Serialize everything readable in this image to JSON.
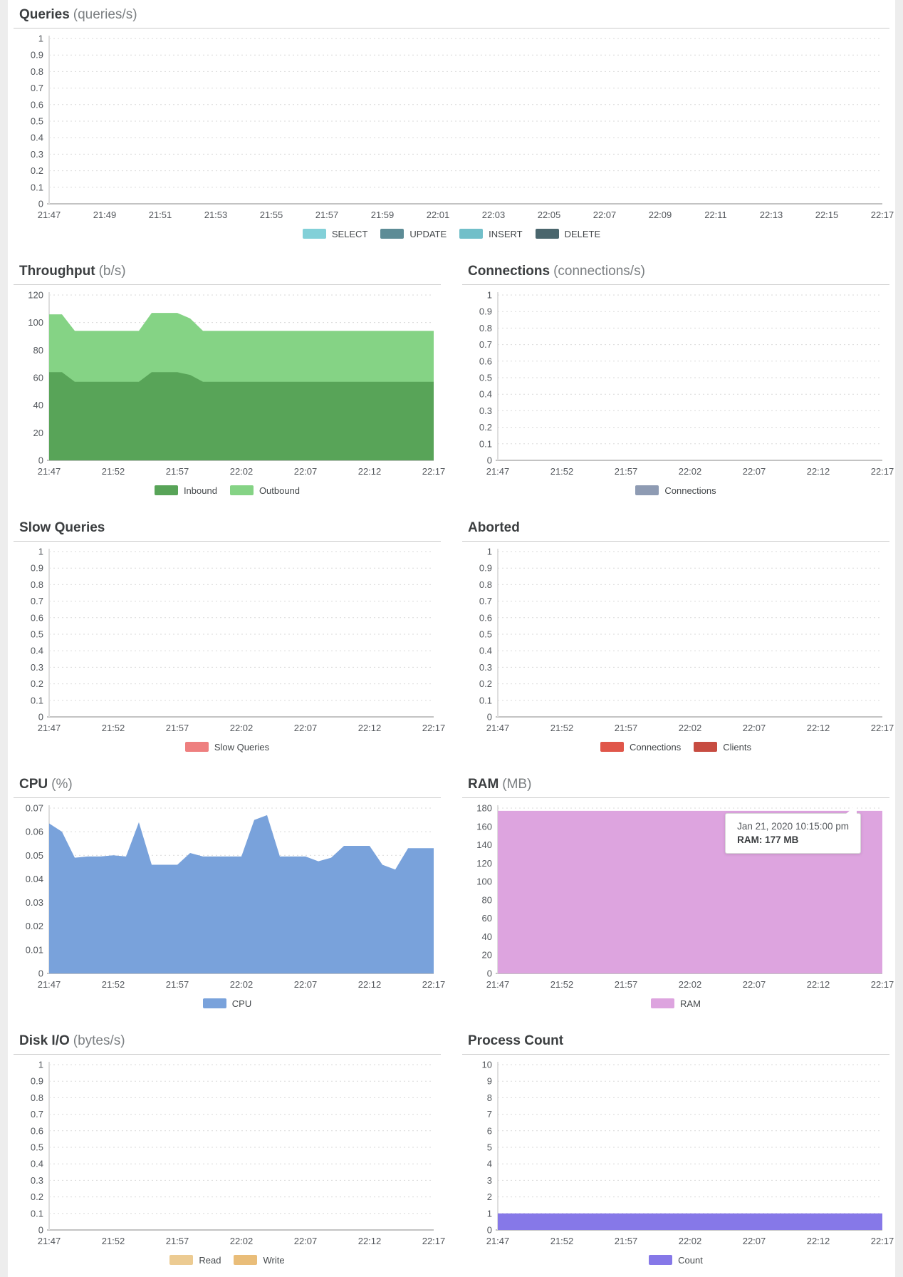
{
  "chart_data": [
    {
      "id": "queries",
      "type": "area",
      "title": "Queries",
      "subtitle": "(queries/s)",
      "ylim": [
        0,
        1
      ],
      "grid": true,
      "legend_position": "bottom",
      "yticks": [
        "1",
        "0.9",
        "0.8",
        "0.7",
        "0.6",
        "0.5",
        "0.4",
        "0.3",
        "0.2",
        "0.1",
        "0"
      ],
      "x_labels": [
        "21:47",
        "21:49",
        "21:51",
        "21:53",
        "21:55",
        "21:57",
        "21:59",
        "22:01",
        "22:03",
        "22:05",
        "22:07",
        "22:09",
        "22:11",
        "22:13",
        "22:15",
        "22:17"
      ],
      "series": [],
      "legend": [
        {
          "label": "SELECT",
          "color": "#82d0d8"
        },
        {
          "label": "UPDATE",
          "color": "#5d8c96"
        },
        {
          "label": "INSERT",
          "color": "#71bfc9"
        },
        {
          "label": "DELETE",
          "color": "#4a666d"
        }
      ]
    },
    {
      "id": "throughput",
      "type": "area",
      "title": "Throughput",
      "subtitle": "(b/s)",
      "ylim": [
        0,
        120
      ],
      "grid": true,
      "legend_position": "bottom",
      "yticks": [
        "120",
        "100",
        "80",
        "60",
        "40",
        "20",
        "0"
      ],
      "x_labels": [
        "21:47",
        "21:52",
        "21:57",
        "22:02",
        "22:07",
        "22:12",
        "22:17"
      ],
      "series": [
        {
          "name": "Outbound",
          "color": "#85d385",
          "values": [
            106,
            106,
            94,
            94,
            94,
            94,
            94,
            94,
            107,
            107,
            107,
            103,
            94,
            94,
            94,
            94,
            94,
            94,
            94,
            94,
            94,
            94,
            94,
            94,
            94,
            94,
            94,
            94,
            94,
            94,
            94
          ]
        },
        {
          "name": "Inbound",
          "color": "#58a458",
          "values": [
            64,
            64,
            57,
            57,
            57,
            57,
            57,
            57,
            64,
            64,
            64,
            62,
            57,
            57,
            57,
            57,
            57,
            57,
            57,
            57,
            57,
            57,
            57,
            57,
            57,
            57,
            57,
            57,
            57,
            57,
            57
          ]
        }
      ],
      "legend": [
        {
          "label": "Inbound",
          "color": "#58a458"
        },
        {
          "label": "Outbound",
          "color": "#85d385"
        }
      ]
    },
    {
      "id": "connections",
      "type": "area",
      "title": "Connections",
      "subtitle": "(connections/s)",
      "ylim": [
        0,
        1
      ],
      "grid": true,
      "legend_position": "bottom",
      "yticks": [
        "1",
        "0.9",
        "0.8",
        "0.7",
        "0.6",
        "0.5",
        "0.4",
        "0.3",
        "0.2",
        "0.1",
        "0"
      ],
      "x_labels": [
        "21:47",
        "21:52",
        "21:57",
        "22:02",
        "22:07",
        "22:12",
        "22:17"
      ],
      "series": [],
      "legend": [
        {
          "label": "Connections",
          "color": "#8e9bb3"
        }
      ]
    },
    {
      "id": "slow-queries",
      "type": "area",
      "title": "Slow Queries",
      "subtitle": "",
      "ylim": [
        0,
        1
      ],
      "grid": true,
      "legend_position": "bottom",
      "yticks": [
        "1",
        "0.9",
        "0.8",
        "0.7",
        "0.6",
        "0.5",
        "0.4",
        "0.3",
        "0.2",
        "0.1",
        "0"
      ],
      "x_labels": [
        "21:47",
        "21:52",
        "21:57",
        "22:02",
        "22:07",
        "22:12",
        "22:17"
      ],
      "series": [],
      "legend": [
        {
          "label": "Slow Queries",
          "color": "#ee7f7f"
        }
      ]
    },
    {
      "id": "aborted",
      "type": "area",
      "title": "Aborted",
      "subtitle": "",
      "ylim": [
        0,
        1
      ],
      "grid": true,
      "legend_position": "bottom",
      "yticks": [
        "1",
        "0.9",
        "0.8",
        "0.7",
        "0.6",
        "0.5",
        "0.4",
        "0.3",
        "0.2",
        "0.1",
        "0"
      ],
      "x_labels": [
        "21:47",
        "21:52",
        "21:57",
        "22:02",
        "22:07",
        "22:12",
        "22:17"
      ],
      "series": [],
      "legend": [
        {
          "label": "Connections",
          "color": "#e0564a"
        },
        {
          "label": "Clients",
          "color": "#c74c41"
        }
      ]
    },
    {
      "id": "cpu",
      "type": "area",
      "title": "CPU",
      "subtitle": "(%)",
      "ylim": [
        0,
        0.07
      ],
      "grid": true,
      "legend_position": "bottom",
      "yticks": [
        "0.07",
        "0.06",
        "0.05",
        "0.04",
        "0.03",
        "0.02",
        "0.01",
        "0"
      ],
      "x_labels": [
        "21:47",
        "21:52",
        "21:57",
        "22:02",
        "22:07",
        "22:12",
        "22:17"
      ],
      "series": [
        {
          "name": "CPU",
          "color": "#79a2db",
          "values": [
            0.0635,
            0.06,
            0.049,
            0.0495,
            0.0495,
            0.05,
            0.0495,
            0.064,
            0.046,
            0.046,
            0.046,
            0.051,
            0.0495,
            0.0495,
            0.0495,
            0.0495,
            0.065,
            0.067,
            0.0495,
            0.0495,
            0.0495,
            0.0475,
            0.049,
            0.054,
            0.054,
            0.054,
            0.046,
            0.044,
            0.053,
            0.053,
            0.053
          ]
        }
      ],
      "legend": [
        {
          "label": "CPU",
          "color": "#79a2db"
        }
      ]
    },
    {
      "id": "ram",
      "type": "area",
      "title": "RAM",
      "subtitle": "(MB)",
      "ylim": [
        0,
        180
      ],
      "grid": true,
      "legend_position": "bottom",
      "yticks": [
        "180",
        "160",
        "140",
        "120",
        "100",
        "80",
        "60",
        "40",
        "20",
        "0"
      ],
      "x_labels": [
        "21:47",
        "21:52",
        "21:57",
        "22:02",
        "22:07",
        "22:12",
        "22:17"
      ],
      "series": [
        {
          "name": "RAM",
          "color": "#dda4df",
          "values": [
            177,
            177,
            177,
            177,
            177,
            177,
            177,
            177,
            177,
            177,
            177,
            177,
            177,
            177,
            177,
            177,
            177,
            177,
            177,
            177,
            177,
            177,
            177,
            177,
            177,
            177,
            177,
            177,
            177,
            177,
            177
          ]
        }
      ],
      "legend": [
        {
          "label": "RAM",
          "color": "#dda4df"
        }
      ],
      "tooltip": {
        "date": "Jan 21, 2020 10:15:00 pm",
        "value": "RAM: 177 MB"
      }
    },
    {
      "id": "disk-io",
      "type": "area",
      "title": "Disk I/O",
      "subtitle": "(bytes/s)",
      "ylim": [
        0,
        1
      ],
      "grid": true,
      "legend_position": "bottom",
      "yticks": [
        "1",
        "0.9",
        "0.8",
        "0.7",
        "0.6",
        "0.5",
        "0.4",
        "0.3",
        "0.2",
        "0.1",
        "0"
      ],
      "x_labels": [
        "21:47",
        "21:52",
        "21:57",
        "22:02",
        "22:07",
        "22:12",
        "22:17"
      ],
      "series": [],
      "legend": [
        {
          "label": "Read",
          "color": "#eccb92"
        },
        {
          "label": "Write",
          "color": "#e9bd79"
        }
      ]
    },
    {
      "id": "process-count",
      "type": "area",
      "title": "Process Count",
      "subtitle": "",
      "ylim": [
        0,
        10
      ],
      "grid": true,
      "legend_position": "bottom",
      "yticks": [
        "10",
        "9",
        "8",
        "7",
        "6",
        "5",
        "4",
        "3",
        "2",
        "1",
        "0"
      ],
      "x_labels": [
        "21:47",
        "21:52",
        "21:57",
        "22:02",
        "22:07",
        "22:12",
        "22:17"
      ],
      "series": [
        {
          "name": "Count",
          "color": "#8678e8",
          "values": [
            1,
            1,
            1,
            1,
            1,
            1,
            1,
            1,
            1,
            1,
            1,
            1,
            1,
            1,
            1,
            1,
            1,
            1,
            1,
            1,
            1,
            1,
            1,
            1,
            1,
            1,
            1,
            1,
            1,
            1,
            1
          ]
        }
      ],
      "legend": [
        {
          "label": "Count",
          "color": "#8678e8"
        }
      ]
    }
  ]
}
